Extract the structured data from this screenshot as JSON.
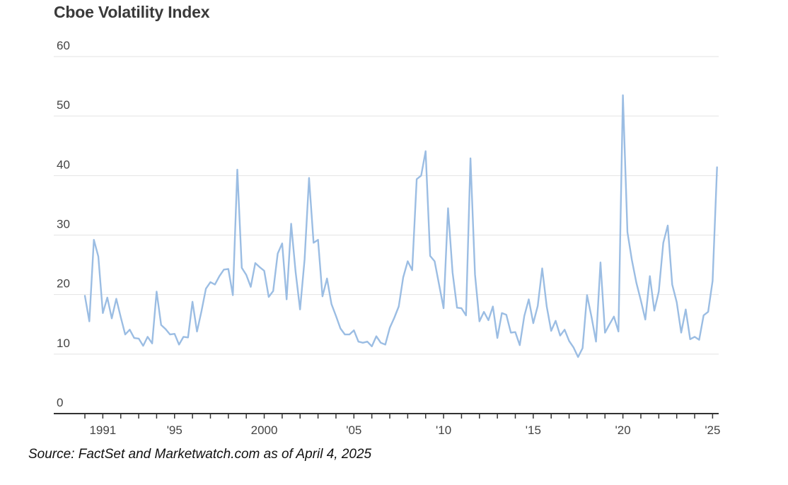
{
  "chart_data": {
    "type": "line",
    "title": "Cboe Volatility Index",
    "xlabel": "",
    "ylabel": "",
    "ylim": [
      0,
      60
    ],
    "xlim": [
      1990.0,
      2025.3
    ],
    "yticks": [
      0,
      10,
      20,
      30,
      40,
      50,
      60
    ],
    "xtick_values": [
      1991,
      1995,
      2000,
      2005,
      2010,
      2015,
      2020,
      2025
    ],
    "xtick_labels": [
      "1991",
      "'95",
      "2000",
      "'05",
      "'10",
      "'15",
      "'20",
      "'25"
    ],
    "grid": "horizontal",
    "line_color": "#9bbde3",
    "series": [
      {
        "x": [
          1990.0,
          1990.25,
          1990.5,
          1990.75,
          1991.0,
          1991.25,
          1991.5,
          1991.75,
          1992.0,
          1992.25,
          1992.5,
          1992.75,
          1993.0,
          1993.25,
          1993.5,
          1993.75,
          1994.0,
          1994.25,
          1994.5,
          1994.75,
          1995.0,
          1995.25,
          1995.5,
          1995.75,
          1996.0,
          1996.25,
          1996.5,
          1996.75,
          1997.0,
          1997.25,
          1997.5,
          1997.75,
          1998.0,
          1998.25,
          1998.5,
          1998.75,
          1999.0,
          1999.25,
          1999.5,
          1999.75,
          2000.0,
          2000.25,
          2000.5,
          2000.75,
          2001.0,
          2001.25,
          2001.5,
          2001.75,
          2002.0,
          2002.25,
          2002.5,
          2002.75,
          2003.0,
          2003.25,
          2003.5,
          2003.75,
          2004.0,
          2004.25,
          2004.5,
          2004.75,
          2005.0,
          2005.25,
          2005.5,
          2005.75,
          2006.0,
          2006.25,
          2006.5,
          2006.75,
          2007.0,
          2007.25,
          2007.5,
          2007.75,
          2008.0,
          2008.25,
          2008.5,
          2008.75,
          2009.0,
          2009.25,
          2009.5,
          2009.75,
          2010.0,
          2010.25,
          2010.5,
          2010.75,
          2011.0,
          2011.25,
          2011.5,
          2011.75,
          2012.0,
          2012.25,
          2012.5,
          2012.75,
          2013.0,
          2013.25,
          2013.5,
          2013.75,
          2014.0,
          2014.25,
          2014.5,
          2014.75,
          2015.0,
          2015.25,
          2015.5,
          2015.75,
          2016.0,
          2016.25,
          2016.5,
          2016.75,
          2017.0,
          2017.25,
          2017.5,
          2017.75,
          2018.0,
          2018.25,
          2018.5,
          2018.75,
          2019.0,
          2019.25,
          2019.5,
          2019.75,
          2020.0,
          2020.25,
          2020.5,
          2020.75,
          2021.0,
          2021.25,
          2021.5,
          2021.75,
          2022.0,
          2022.25,
          2022.5,
          2022.75,
          2023.0,
          2023.25,
          2023.5,
          2023.75,
          2024.0,
          2024.25,
          2024.5,
          2024.75,
          2025.0,
          2025.25
        ],
        "values": [
          19.8,
          15.5,
          29.2,
          26.4,
          16.9,
          19.5,
          16.0,
          19.3,
          16.2,
          13.3,
          14.1,
          12.7,
          12.6,
          11.4,
          12.9,
          11.8,
          20.5,
          14.9,
          14.2,
          13.3,
          13.4,
          11.6,
          12.9,
          12.8,
          18.8,
          13.8,
          17.2,
          21.0,
          22.1,
          21.7,
          23.1,
          24.2,
          24.3,
          19.9,
          41.0,
          24.5,
          23.3,
          21.3,
          25.3,
          24.6,
          24.0,
          19.6,
          20.6,
          26.9,
          28.6,
          19.2,
          31.9,
          23.8,
          17.5,
          25.9,
          39.6,
          28.7,
          29.2,
          19.7,
          22.7,
          18.4,
          16.4,
          14.3,
          13.3,
          13.3,
          14.0,
          12.1,
          11.9,
          12.1,
          11.3,
          13.0,
          11.9,
          11.6,
          14.4,
          16.1,
          18.0,
          22.9,
          25.6,
          24.1,
          39.4,
          40.0,
          44.1,
          26.5,
          25.6,
          21.7,
          17.7,
          34.5,
          23.7,
          17.8,
          17.7,
          16.5,
          42.9,
          23.4,
          15.5,
          17.1,
          15.7,
          18.0,
          12.7,
          16.9,
          16.6,
          13.6,
          13.7,
          11.5,
          16.4,
          19.2,
          15.2,
          18.1,
          24.4,
          18.0,
          13.9,
          15.6,
          13.1,
          14.1,
          12.2,
          11.1,
          9.5,
          11.0,
          19.9,
          16.2,
          12.1,
          25.4,
          13.6,
          15.0,
          16.3,
          13.8,
          53.5,
          30.5,
          25.8,
          22.0,
          19.0,
          15.8,
          23.1,
          17.3,
          20.5,
          28.7,
          31.6,
          21.7,
          18.7,
          13.6,
          17.5,
          12.5,
          12.9,
          12.4,
          16.5,
          17.1,
          22.3,
          41.4
        ]
      }
    ]
  },
  "source_note": "Source: FactSet and Marketwatch.com as of April 4, 2025"
}
